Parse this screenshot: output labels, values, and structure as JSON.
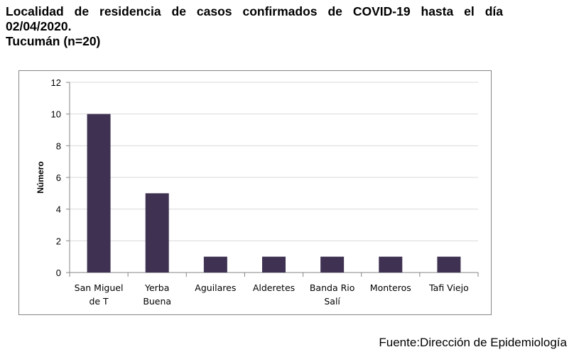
{
  "title": {
    "line1": "Localidad de residencia de casos confirmados de COVID-19 hasta el día",
    "line2": "02/04/2020.",
    "line3": "Tucumán (n=20)"
  },
  "source": "Fuente:Dirección de Epidemiología",
  "colors": {
    "bar": "#3f3152",
    "grid": "#d9d9d9",
    "axis": "#868686"
  },
  "chart_data": {
    "type": "bar",
    "title": "",
    "xlabel": "",
    "ylabel": "Número",
    "ylim": [
      0,
      12
    ],
    "yticks": [
      0,
      2,
      4,
      6,
      8,
      10,
      12
    ],
    "grid": true,
    "categories": [
      [
        "San Miguel",
        "de T"
      ],
      [
        "Yerba",
        "Buena"
      ],
      [
        "Aguilares"
      ],
      [
        "Alderetes"
      ],
      [
        "Banda Rio",
        "Salí"
      ],
      [
        "Monteros"
      ],
      [
        "Tafi Viejo"
      ]
    ],
    "values": [
      10,
      5,
      1,
      1,
      1,
      1,
      1
    ]
  }
}
